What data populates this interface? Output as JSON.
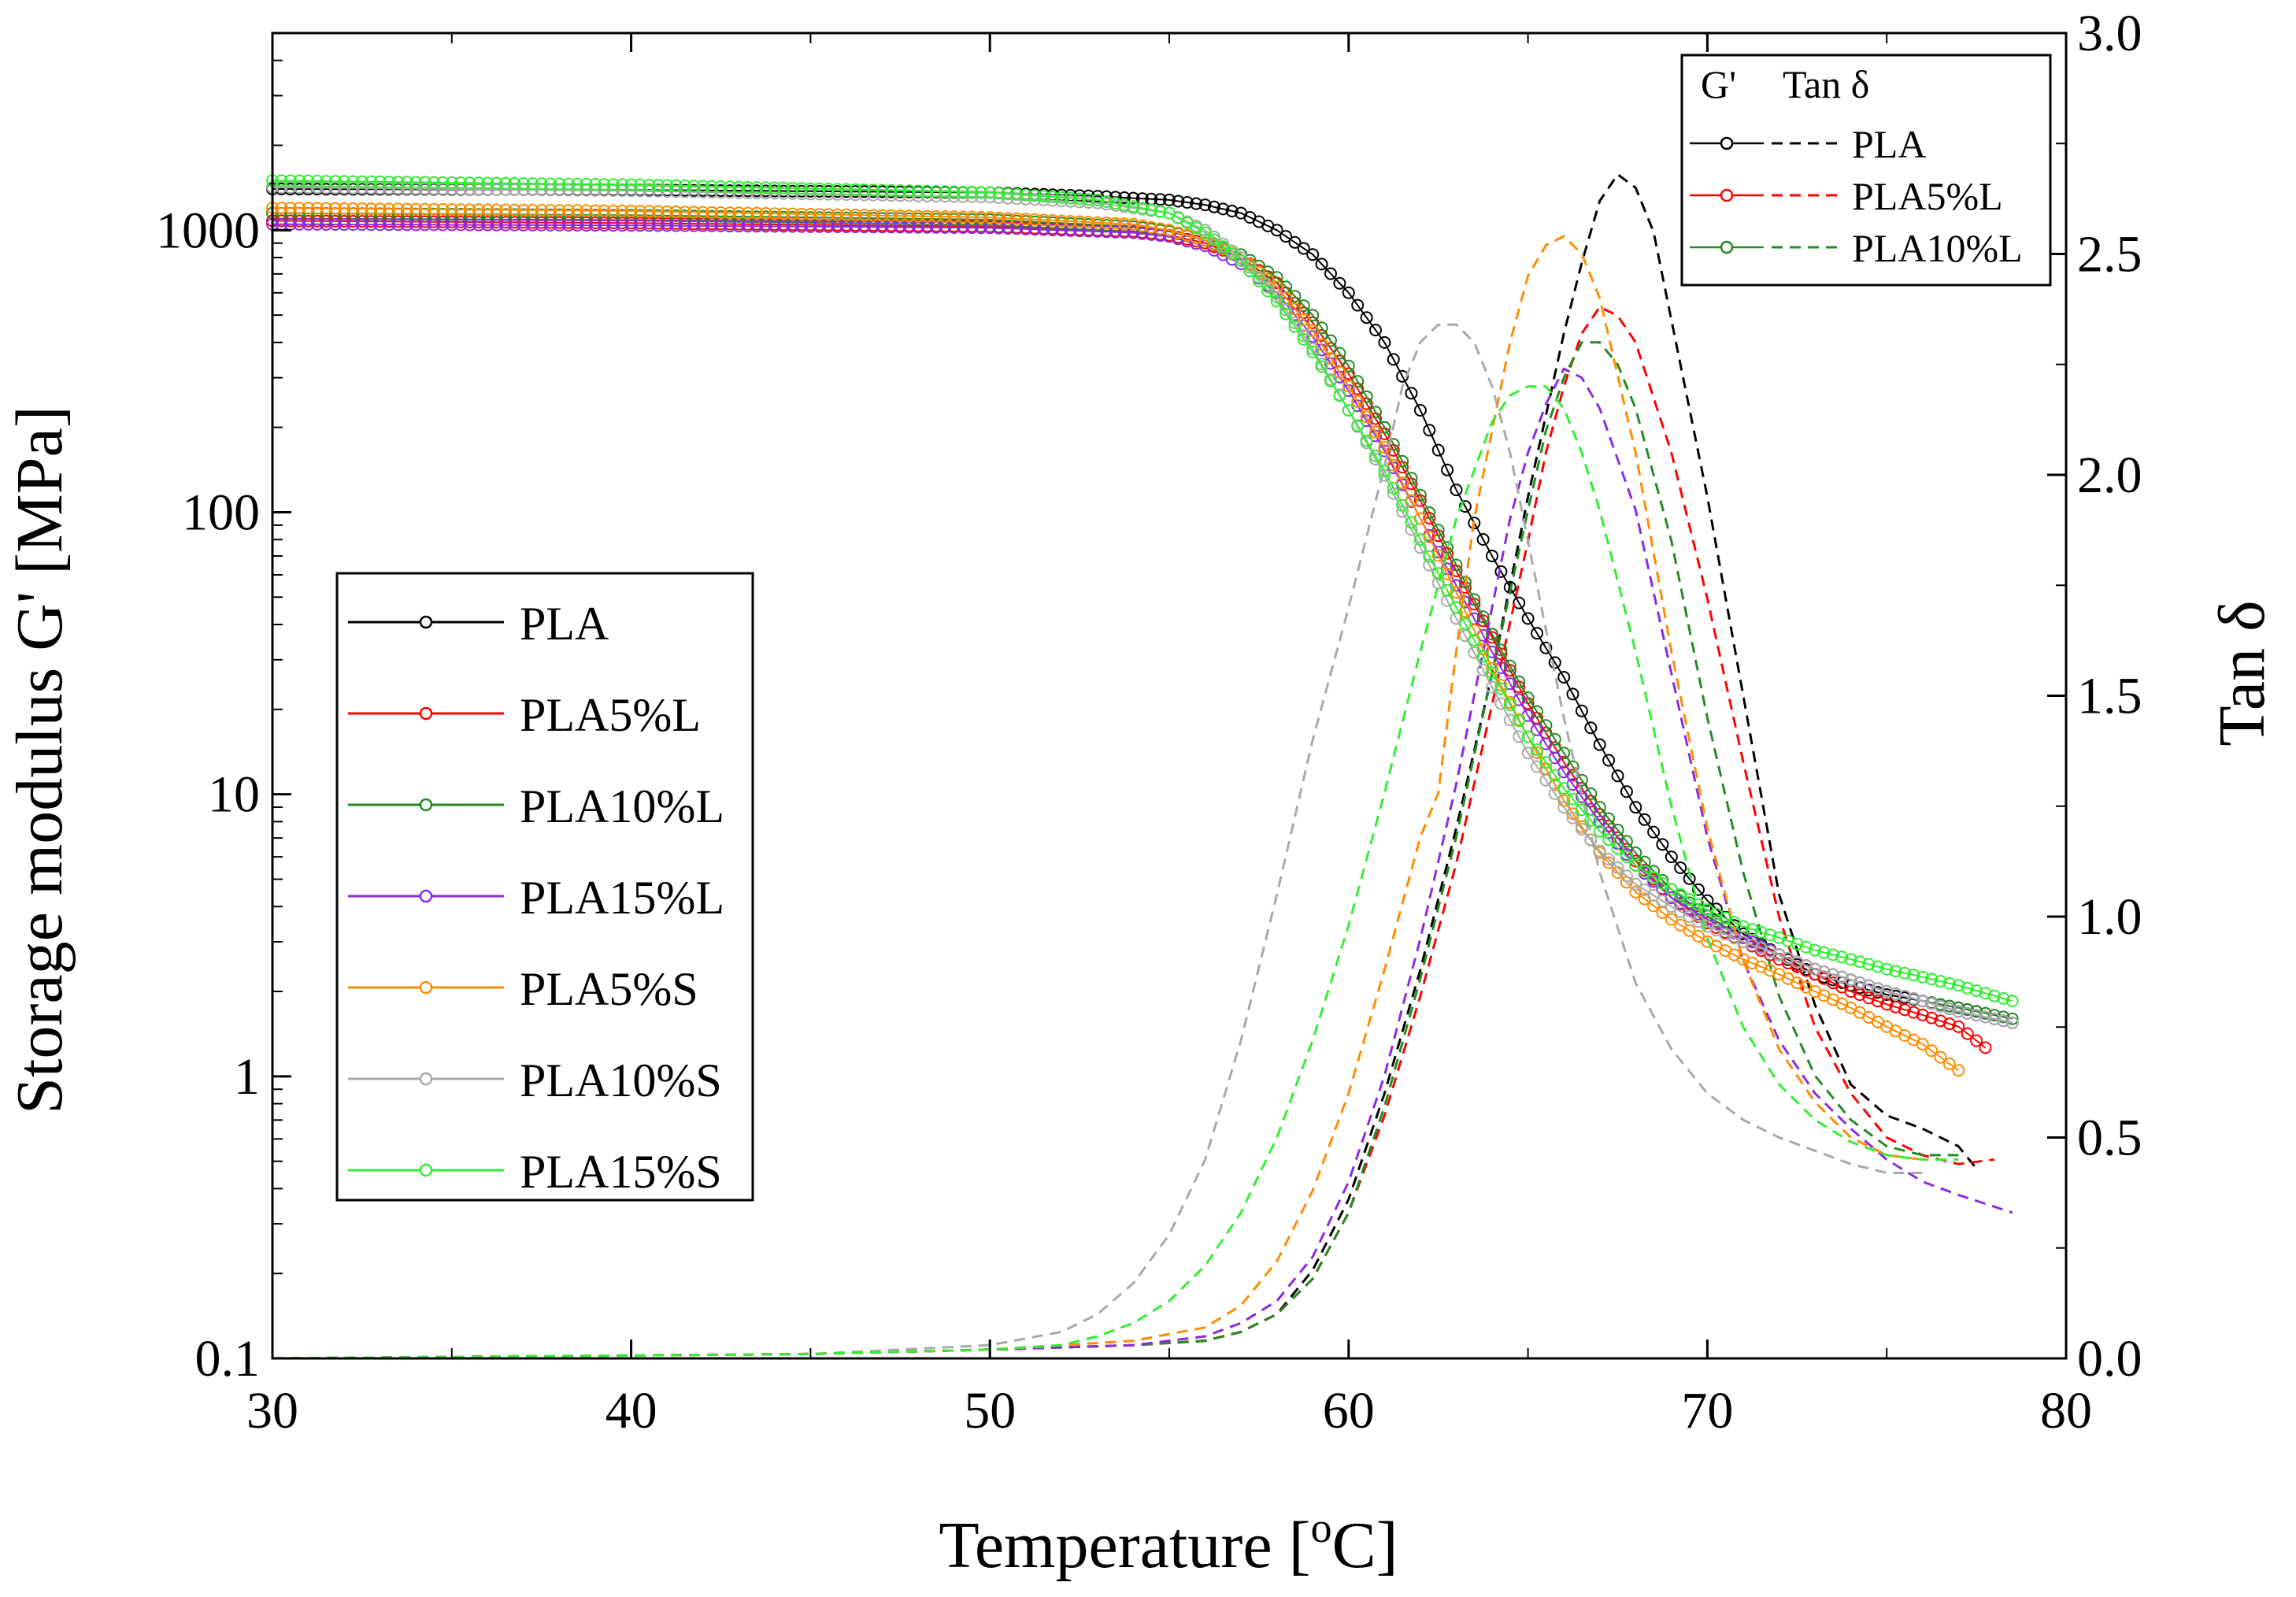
{
  "chart_data": {
    "type": "line",
    "title": "",
    "xlabel": "Temperature [°C]",
    "xlabel_parts": [
      "Temperature [",
      "o",
      "C]"
    ],
    "ylabel": "Storage modulus G' [MPa]",
    "y2label": "Tan δ",
    "xlim": [
      30,
      80
    ],
    "ylim": [
      0.1,
      5000
    ],
    "yscale": "log",
    "y2lim": [
      0.0,
      3.0
    ],
    "xticks": [
      30,
      40,
      50,
      60,
      70,
      80
    ],
    "yticks": [
      0.1,
      1,
      10,
      100,
      1000
    ],
    "ytick_labels": [
      "0.1",
      "1",
      "10",
      "100",
      "1000"
    ],
    "y2ticks": [
      0.0,
      0.5,
      1.0,
      1.5,
      2.0,
      2.5,
      3.0
    ],
    "y2tick_labels": [
      "0.0",
      "0.5",
      "1.0",
      "1.5",
      "2.0",
      "2.5",
      "3.0"
    ],
    "legend_main": {
      "position": "middle-left",
      "entries": [
        "PLA",
        "PLA5%L",
        "PLA10%L",
        "PLA15%L",
        "PLA5%S",
        "PLA10%S",
        "PLA15%S"
      ]
    },
    "legend_secondary": {
      "position": "top-right",
      "header_g": "G'",
      "header_tan": "Tan δ",
      "entries": [
        "PLA",
        "PLA5%L",
        "PLA10%L"
      ]
    },
    "series": [
      {
        "name": "PLA",
        "color": "#000000",
        "storage_modulus": {
          "x": [
            30,
            40,
            50,
            53,
            55,
            56,
            57,
            58,
            59,
            60,
            61,
            62,
            63,
            64,
            65,
            66,
            67,
            68,
            69,
            70,
            71,
            72,
            73,
            74,
            75,
            76,
            77,
            77.5
          ],
          "y": [
            1400,
            1390,
            1360,
            1320,
            1280,
            1230,
            1150,
            1000,
            820,
            600,
            400,
            230,
            120,
            70,
            42,
            26,
            15,
            9,
            6,
            4.2,
            3.2,
            2.7,
            2.3,
            2.1,
            1.95,
            1.85,
            1.75,
            1.7
          ]
        },
        "tan_delta": {
          "x": [
            30,
            45,
            50,
            54,
            56,
            57,
            58,
            59,
            60,
            61,
            62,
            63,
            64,
            65,
            66,
            66.5,
            67,
            67.5,
            68,
            68.5,
            69,
            69.5,
            70,
            71,
            72,
            73,
            74,
            75,
            76,
            77,
            77.5
          ],
          "y": [
            0.0,
            0.01,
            0.02,
            0.03,
            0.04,
            0.06,
            0.1,
            0.2,
            0.36,
            0.6,
            0.88,
            1.2,
            1.55,
            1.95,
            2.32,
            2.48,
            2.62,
            2.68,
            2.65,
            2.55,
            2.35,
            2.15,
            1.95,
            1.5,
            1.05,
            0.8,
            0.62,
            0.55,
            0.52,
            0.48,
            0.43
          ]
        }
      },
      {
        "name": "PLA5%L",
        "color": "#ff0000",
        "storage_modulus": {
          "x": [
            30,
            40,
            50,
            54,
            55,
            56,
            57,
            58,
            59,
            60,
            61,
            62,
            63,
            64,
            65,
            66,
            67,
            68,
            69,
            70,
            71,
            72,
            73,
            74,
            75,
            76,
            77,
            77.8
          ],
          "y": [
            1080,
            1060,
            1030,
            990,
            960,
            900,
            800,
            650,
            470,
            310,
            190,
            110,
            62,
            36,
            21,
            13,
            8.5,
            5.8,
            4.3,
            3.5,
            3.0,
            2.6,
            2.3,
            2.0,
            1.8,
            1.65,
            1.5,
            1.25
          ]
        },
        "tan_delta": {
          "x": [
            30,
            45,
            50,
            54,
            56,
            57,
            58,
            59,
            60,
            61,
            62,
            63,
            64,
            65,
            65.5,
            66,
            66.5,
            67,
            67.5,
            68,
            69,
            70,
            71,
            72,
            73,
            74,
            75,
            76,
            77,
            78
          ],
          "y": [
            0.0,
            0.01,
            0.02,
            0.03,
            0.04,
            0.06,
            0.1,
            0.18,
            0.33,
            0.55,
            0.82,
            1.12,
            1.48,
            1.85,
            2.05,
            2.2,
            2.32,
            2.38,
            2.36,
            2.3,
            2.05,
            1.72,
            1.35,
            1.0,
            0.75,
            0.6,
            0.5,
            0.46,
            0.44,
            0.45
          ]
        }
      },
      {
        "name": "PLA10%L",
        "color": "#228b22",
        "storage_modulus": {
          "x": [
            30,
            40,
            50,
            54,
            55,
            56,
            57,
            58,
            59,
            60,
            61,
            62,
            63,
            64,
            65,
            66,
            67,
            68,
            69,
            70,
            71,
            72,
            73,
            74,
            75,
            76,
            77,
            78.5
          ],
          "y": [
            1150,
            1130,
            1090,
            1030,
            990,
            920,
            820,
            680,
            500,
            330,
            200,
            115,
            65,
            37,
            22,
            14,
            9,
            6.2,
            4.6,
            3.7,
            3.1,
            2.7,
            2.4,
            2.2,
            2.0,
            1.85,
            1.75,
            1.6
          ]
        },
        "tan_delta": {
          "x": [
            30,
            45,
            50,
            54,
            56,
            57,
            58,
            59,
            60,
            61,
            62,
            63,
            64,
            65,
            65.5,
            66,
            66.5,
            67,
            67.5,
            68,
            69,
            70,
            71,
            72,
            73,
            74,
            75,
            76,
            77
          ],
          "y": [
            0.0,
            0.01,
            0.02,
            0.03,
            0.04,
            0.06,
            0.1,
            0.18,
            0.33,
            0.57,
            0.86,
            1.18,
            1.55,
            1.92,
            2.1,
            2.22,
            2.3,
            2.3,
            2.25,
            2.15,
            1.85,
            1.45,
            1.1,
            0.82,
            0.64,
            0.54,
            0.48,
            0.46,
            0.46
          ]
        }
      },
      {
        "name": "PLA15%L",
        "color": "#8b2be2",
        "storage_modulus": {
          "x": [
            30,
            40,
            50,
            54,
            55,
            56,
            57,
            58,
            59,
            60,
            61,
            62,
            63,
            64,
            65,
            66,
            67,
            68,
            69,
            70,
            71,
            72,
            73,
            74,
            75,
            76,
            77,
            78.5
          ],
          "y": [
            1050,
            1040,
            1020,
            980,
            950,
            880,
            760,
            600,
            420,
            270,
            165,
            95,
            55,
            32,
            19,
            12,
            8,
            5.6,
            4.3,
            3.6,
            3.1,
            2.7,
            2.4,
            2.2,
            2.0,
            1.85,
            1.7,
            1.55
          ]
        },
        "tan_delta": {
          "x": [
            30,
            45,
            50,
            54,
            56,
            57,
            58,
            59,
            60,
            61,
            62,
            63,
            64,
            64.5,
            65,
            65.5,
            66,
            66.5,
            67,
            68,
            69,
            70,
            71,
            72,
            73,
            74,
            75,
            76,
            77,
            78.5
          ],
          "y": [
            0.0,
            0.01,
            0.02,
            0.03,
            0.05,
            0.08,
            0.13,
            0.23,
            0.4,
            0.64,
            0.95,
            1.3,
            1.7,
            1.9,
            2.05,
            2.16,
            2.24,
            2.22,
            2.15,
            1.92,
            1.55,
            1.18,
            0.9,
            0.72,
            0.6,
            0.52,
            0.45,
            0.4,
            0.37,
            0.33
          ]
        }
      },
      {
        "name": "PLA5%S",
        "color": "#ff8c00",
        "storage_modulus": {
          "x": [
            30,
            40,
            50,
            54,
            55,
            56,
            57,
            58,
            59,
            60,
            61,
            62,
            63,
            64,
            65,
            66,
            67,
            68,
            69,
            70,
            71,
            72,
            73,
            74,
            75,
            76,
            77
          ],
          "y": [
            1200,
            1170,
            1110,
            1050,
            1000,
            920,
            800,
            630,
            440,
            280,
            170,
            95,
            52,
            28,
            16,
            9.5,
            6.2,
            4.5,
            3.6,
            3.0,
            2.6,
            2.3,
            2.0,
            1.75,
            1.5,
            1.3,
            1.05
          ]
        },
        "tan_delta": {
          "x": [
            30,
            45,
            50,
            54,
            56,
            57,
            58,
            59,
            60,
            61,
            62,
            62.5,
            63,
            63.5,
            64,
            64.5,
            65,
            65.5,
            66,
            66.5,
            67,
            68,
            69,
            70,
            71,
            72,
            73,
            74,
            75,
            76
          ],
          "y": [
            0.0,
            0.01,
            0.02,
            0.04,
            0.07,
            0.12,
            0.22,
            0.38,
            0.6,
            0.88,
            1.18,
            1.28,
            1.6,
            1.9,
            2.1,
            2.3,
            2.45,
            2.52,
            2.54,
            2.5,
            2.4,
            2.05,
            1.6,
            1.2,
            0.9,
            0.7,
            0.58,
            0.5,
            0.46,
            0.45
          ]
        }
      },
      {
        "name": "PLA10%S",
        "color": "#a9a9a9",
        "storage_modulus": {
          "x": [
            30,
            40,
            50,
            53,
            55,
            56,
            57,
            58,
            59,
            60,
            61,
            62,
            63,
            64,
            65,
            66,
            67,
            68,
            69,
            70,
            71,
            72,
            73,
            74,
            75,
            76,
            77,
            78.5
          ],
          "y": [
            1420,
            1380,
            1310,
            1250,
            1150,
            1000,
            800,
            580,
            380,
            230,
            135,
            75,
            42,
            24,
            14,
            9,
            6.3,
            4.8,
            4.0,
            3.4,
            3.0,
            2.7,
            2.4,
            2.2,
            2.0,
            1.85,
            1.7,
            1.55
          ]
        },
        "tan_delta": {
          "x": [
            30,
            45,
            50,
            52,
            53,
            54,
            55,
            56,
            57,
            58,
            59,
            60,
            61,
            61.5,
            62,
            62.5,
            63,
            63.5,
            64,
            64.5,
            65,
            66,
            67,
            68,
            69,
            70,
            71,
            72,
            73,
            74,
            75,
            76
          ],
          "y": [
            0.0,
            0.01,
            0.03,
            0.06,
            0.1,
            0.17,
            0.28,
            0.45,
            0.72,
            1.05,
            1.4,
            1.7,
            2.02,
            2.2,
            2.3,
            2.34,
            2.34,
            2.3,
            2.2,
            2.05,
            1.85,
            1.45,
            1.1,
            0.85,
            0.7,
            0.6,
            0.54,
            0.5,
            0.47,
            0.44,
            0.42,
            0.42
          ]
        }
      },
      {
        "name": "PLA15%S",
        "color": "#33ee33",
        "storage_modulus": {
          "x": [
            30,
            40,
            50,
            53,
            55,
            56,
            57,
            58,
            59,
            60,
            61,
            62,
            63,
            64,
            65,
            66,
            67,
            68,
            69,
            70,
            71,
            72,
            73,
            74,
            75,
            76,
            77,
            78.5
          ],
          "y": [
            1500,
            1450,
            1360,
            1280,
            1150,
            980,
            780,
            560,
            370,
            230,
            140,
            80,
            46,
            27,
            16,
            10.5,
            7.4,
            5.6,
            4.6,
            3.9,
            3.4,
            3.1,
            2.8,
            2.6,
            2.4,
            2.25,
            2.1,
            1.85
          ]
        },
        "tan_delta": {
          "x": [
            30,
            45,
            50,
            52,
            53,
            54,
            55,
            56,
            57,
            58,
            59,
            60,
            61,
            62,
            63,
            64,
            64.5,
            65,
            65.5,
            66,
            66.5,
            67,
            68,
            69,
            70,
            71,
            72,
            73,
            74,
            75,
            76,
            77
          ],
          "y": [
            0.0,
            0.01,
            0.02,
            0.03,
            0.05,
            0.08,
            0.13,
            0.21,
            0.33,
            0.5,
            0.72,
            0.98,
            1.28,
            1.6,
            1.9,
            2.12,
            2.18,
            2.2,
            2.2,
            2.15,
            2.05,
            1.92,
            1.6,
            1.25,
            0.95,
            0.75,
            0.62,
            0.54,
            0.49,
            0.46,
            0.45,
            0.45
          ]
        }
      }
    ]
  }
}
